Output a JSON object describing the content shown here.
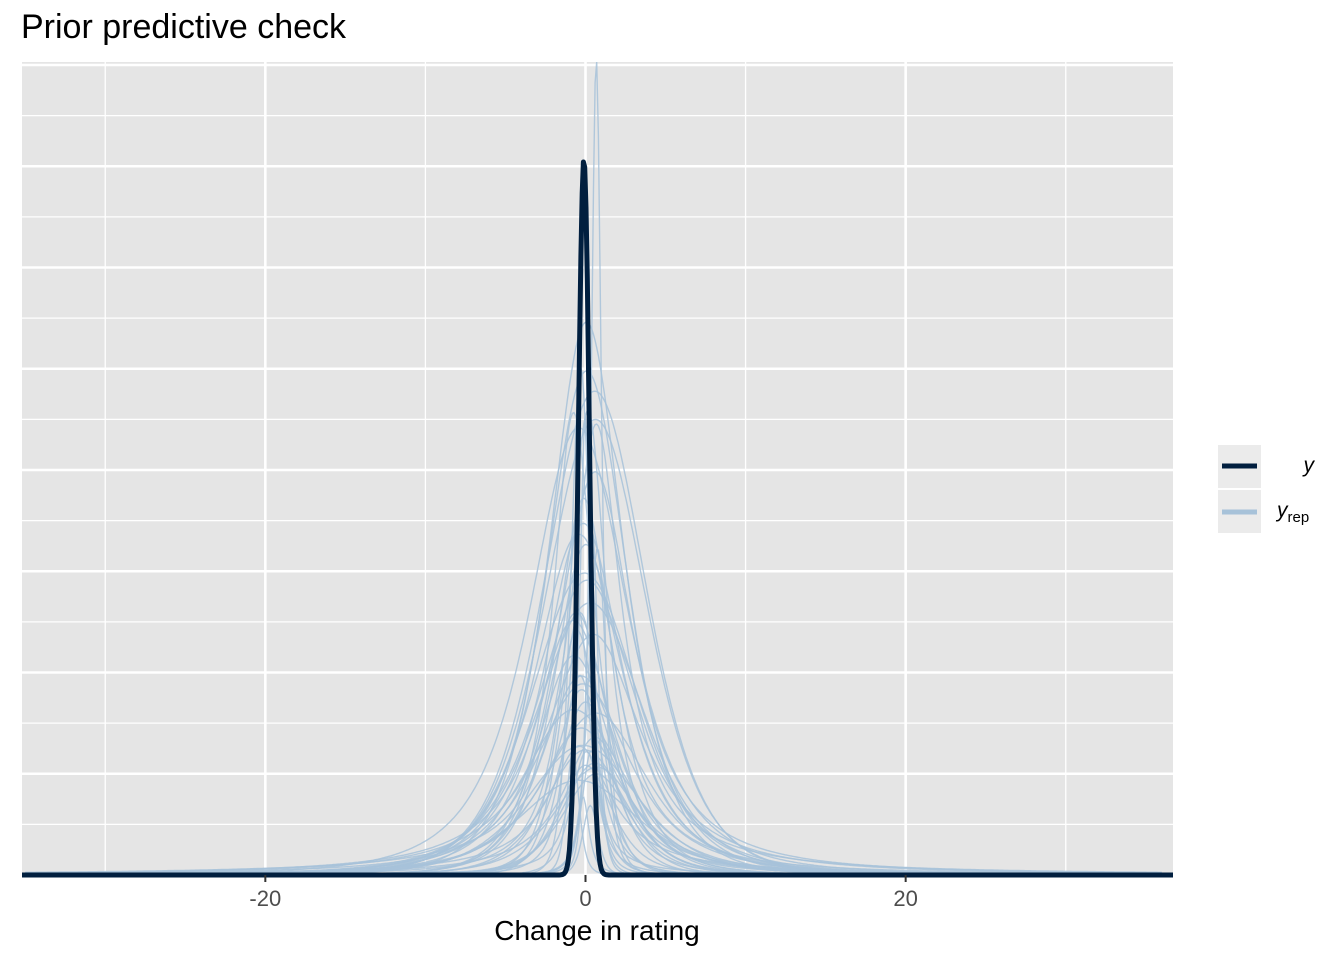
{
  "chart_data": {
    "type": "line",
    "title": "Prior predictive check",
    "xlabel": "Change in rating",
    "ylabel": "",
    "xlim": [
      -35.2,
      36.7
    ],
    "ylim": [
      0,
      1
    ],
    "x_ticks": [
      -20,
      0,
      20
    ],
    "x_tick_labels": [
      "-20",
      "0",
      "20"
    ],
    "y_axis_labels_shown": false,
    "grid": true,
    "legend": {
      "placement": "right",
      "entries": [
        {
          "key": "y",
          "label": "y",
          "subscript": ""
        },
        {
          "key": "yrep",
          "label": "y",
          "subscript": "rep"
        }
      ]
    },
    "colors": {
      "y": "#011f3f",
      "yrep": "#a7c2d9",
      "panel": "#e5e5e5",
      "grid": "#ffffff"
    },
    "series": [
      {
        "name": "y",
        "kind": "density",
        "peak_x": -0.1,
        "peak_density": 0.88,
        "sd": 0.35
      },
      {
        "name": "yrep",
        "kind": "density_draws",
        "draw_count": 50,
        "x_range": [
          -35,
          36
        ],
        "max_density": 1.0
      }
    ]
  }
}
